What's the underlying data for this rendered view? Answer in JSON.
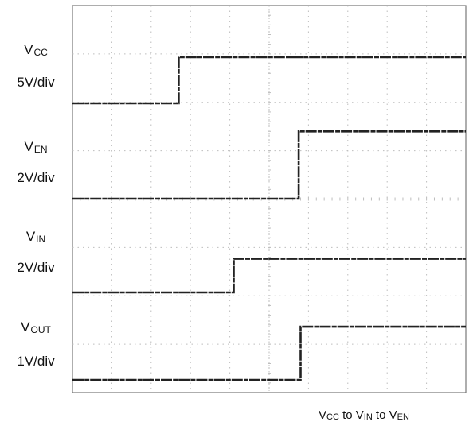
{
  "chart_data": {
    "type": "line",
    "time_divisions": 10,
    "channels": [
      {
        "name_main": "V",
        "name_sub": "CC",
        "scale": "5V/div",
        "points": [
          [
            0,
            0
          ],
          [
            2.7,
            0
          ],
          [
            2.7,
            1.3
          ],
          [
            10,
            1.3
          ]
        ]
      },
      {
        "name_main": "V",
        "name_sub": "EN",
        "scale": "2V/div",
        "points": [
          [
            0,
            0
          ],
          [
            5.75,
            0
          ],
          [
            5.75,
            1.9
          ],
          [
            10,
            1.9
          ]
        ]
      },
      {
        "name_main": "V",
        "name_sub": "IN",
        "scale": "2V/div",
        "points": [
          [
            0,
            0
          ],
          [
            4.1,
            0
          ],
          [
            4.1,
            0.95
          ],
          [
            10,
            0.95
          ]
        ]
      },
      {
        "name_main": "V",
        "name_sub": "OUT",
        "scale": "1V/div",
        "points": [
          [
            0,
            0
          ],
          [
            5.8,
            0
          ],
          [
            5.8,
            1.5
          ],
          [
            10,
            1.5
          ]
        ]
      }
    ],
    "caption": {
      "parts": [
        {
          "main": "V",
          "sub": "CC"
        },
        {
          "main": " to V",
          "sub": "IN"
        },
        {
          "main": " to V",
          "sub": "EN"
        }
      ]
    },
    "grid": true,
    "colors": {
      "trace": "#222222",
      "grid": "#bdbdbd",
      "frame": "#777777"
    }
  }
}
